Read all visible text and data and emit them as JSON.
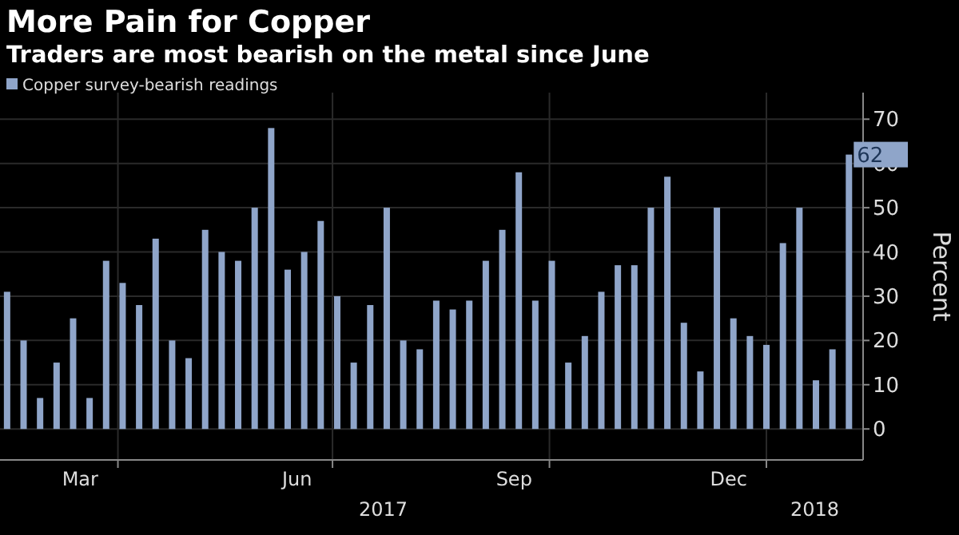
{
  "chart_data": {
    "type": "bar",
    "title": "More Pain for Copper",
    "subtitle": "Traders are most bearish on the metal since June",
    "ylabel": "Percent",
    "x": [
      "2017-02-13",
      "2017-02-20",
      "2017-02-27",
      "2017-03-06",
      "2017-03-13",
      "2017-03-20",
      "2017-03-27",
      "2017-04-03",
      "2017-04-10",
      "2017-04-17",
      "2017-04-24",
      "2017-05-01",
      "2017-05-08",
      "2017-05-15",
      "2017-05-22",
      "2017-05-29",
      "2017-06-05",
      "2017-06-12",
      "2017-06-19",
      "2017-06-26",
      "2017-07-03",
      "2017-07-10",
      "2017-07-17",
      "2017-07-24",
      "2017-07-31",
      "2017-08-07",
      "2017-08-14",
      "2017-08-21",
      "2017-08-28",
      "2017-09-04",
      "2017-09-11",
      "2017-09-18",
      "2017-09-25",
      "2017-10-02",
      "2017-10-09",
      "2017-10-16",
      "2017-10-23",
      "2017-10-30",
      "2017-11-06",
      "2017-11-13",
      "2017-11-20",
      "2017-11-27",
      "2017-12-04",
      "2017-12-11",
      "2017-12-18",
      "2017-12-25",
      "2018-01-01",
      "2018-01-08",
      "2018-01-15",
      "2018-01-22",
      "2018-01-29",
      "2018-02-05"
    ],
    "series": [
      {
        "name": "Copper survey-bearish readings",
        "color": "#8fa5c9",
        "values": [
          31,
          20,
          7,
          15,
          25,
          7,
          38,
          33,
          28,
          43,
          20,
          16,
          45,
          40,
          38,
          50,
          68,
          36,
          40,
          47,
          30,
          15,
          28,
          50,
          20,
          18,
          29,
          27,
          29,
          38,
          45,
          58,
          29,
          38,
          15,
          21,
          31,
          37,
          37,
          50,
          57,
          24,
          13,
          50,
          25,
          21,
          19,
          42,
          50,
          11,
          18,
          62
        ],
        "value_labels": [
          null,
          null,
          null,
          null,
          null,
          null,
          null,
          null,
          null,
          null,
          null,
          null,
          null,
          null,
          null,
          null,
          null,
          null,
          null,
          null,
          null,
          null,
          null,
          null,
          null,
          null,
          null,
          null,
          null,
          null,
          null,
          null,
          null,
          null,
          null,
          null,
          null,
          null,
          null,
          null,
          null,
          null,
          null,
          null,
          null,
          null,
          null,
          null,
          null,
          null,
          null,
          "62"
        ]
      }
    ],
    "xlim": [
      "2017-02-10",
      "2018-02-11"
    ],
    "xticks": [
      {
        "value": "2017-04-01",
        "label": null
      },
      {
        "value": "2017-07-01",
        "label": null
      },
      {
        "value": "2017-10-01",
        "label": null
      },
      {
        "value": "2018-01-01",
        "label": null
      },
      {
        "value": "2017-03-16",
        "label": "Mar"
      },
      {
        "value": "2017-06-16",
        "label": "Jun"
      },
      {
        "value": "2017-09-16",
        "label": "Sep"
      },
      {
        "value": "2017-12-16",
        "label": "Dec"
      }
    ],
    "ylim": [
      -7,
      76
    ],
    "yticks": [
      0,
      10,
      20,
      30,
      40,
      50,
      60,
      70
    ],
    "annotations": [
      "2017",
      "2018"
    ],
    "grid": true,
    "legend": "top left"
  }
}
